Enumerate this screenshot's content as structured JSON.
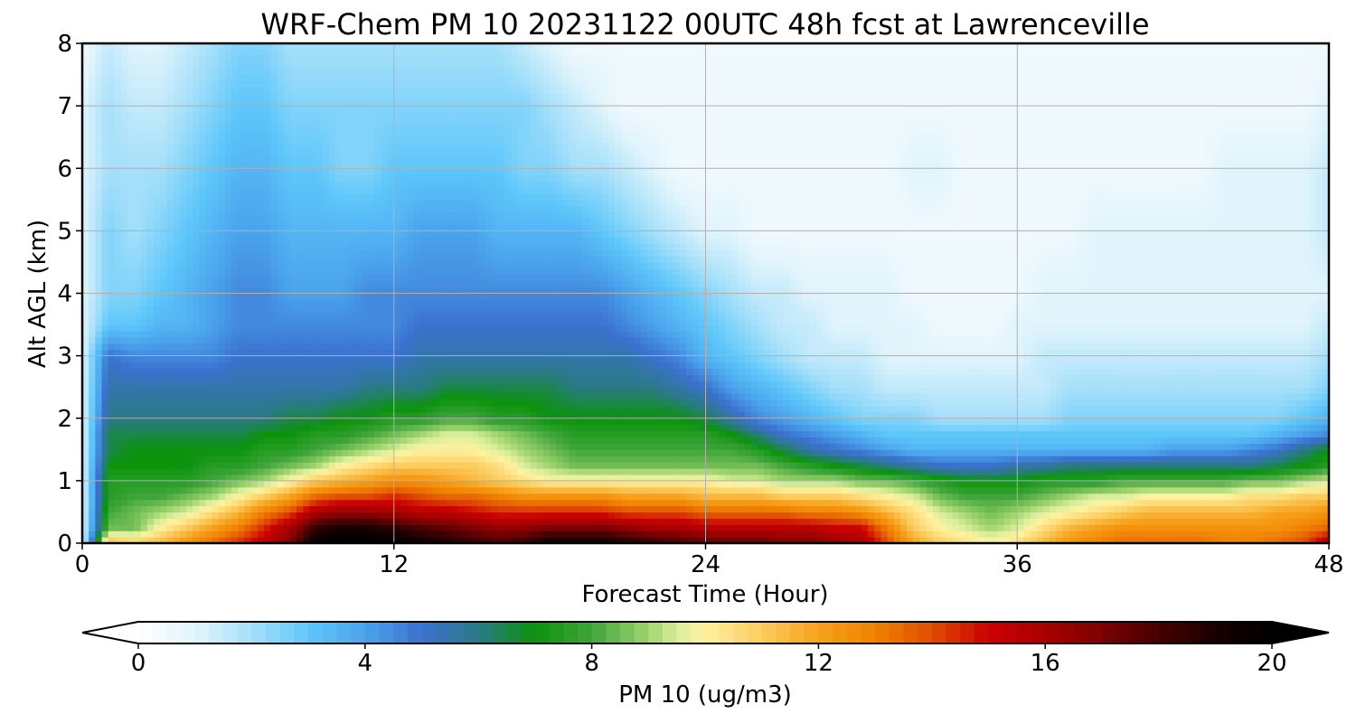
{
  "chart_data": {
    "type": "heatmap",
    "title": "WRF-Chem PM 10  20231122 00UTC 48h fcst at Lawrenceville",
    "xlabel": "Forecast Time (Hour)",
    "ylabel": "Alt AGL (km)",
    "xlim": [
      0,
      48
    ],
    "ylim": [
      0,
      8
    ],
    "x_ticks": [
      "0",
      "12",
      "24",
      "36",
      "48"
    ],
    "y_ticks": [
      "0",
      "1",
      "2",
      "3",
      "4",
      "5",
      "6",
      "7",
      "8"
    ],
    "grid": true,
    "x_hours": [
      0,
      1,
      2,
      3,
      4,
      5,
      6,
      7,
      8,
      9,
      10,
      11,
      12,
      13,
      14,
      15,
      16,
      17,
      18,
      19,
      20,
      21,
      22,
      23,
      24,
      25,
      26,
      27,
      28,
      29,
      30,
      31,
      32,
      33,
      34,
      35,
      36,
      37,
      38,
      39,
      40,
      41,
      42,
      43,
      44,
      45,
      46,
      47,
      48
    ],
    "y_km": [
      0,
      0.25,
      0.5,
      0.75,
      1,
      1.25,
      1.5,
      1.75,
      2,
      2.5,
      3,
      3.5,
      4,
      5,
      6,
      7,
      8
    ],
    "pm10_ugm3": [
      [
        1.0,
        11.5,
        11.0,
        11.5,
        12.5,
        13.5,
        14.5,
        15.5,
        17.0,
        20.0,
        20.5,
        20.5,
        20.0,
        19.5,
        19.0,
        18.5,
        18.0,
        18.5,
        19.5,
        19.5,
        19.5,
        19.0,
        18.5,
        18.0,
        17.5,
        17.5,
        17.5,
        17.0,
        17.0,
        16.5,
        16.0,
        14.0,
        12.0,
        11.0,
        10.5,
        10.0,
        10.5,
        11.5,
        12.5,
        13.0,
        13.5,
        13.5,
        13.5,
        13.5,
        13.0,
        13.0,
        13.5,
        14.0,
        16.0
      ],
      [
        1.0,
        8.5,
        8.5,
        10.0,
        11.0,
        12.0,
        13.0,
        14.5,
        16.0,
        18.5,
        19.0,
        19.0,
        18.5,
        18.0,
        17.5,
        17.0,
        16.5,
        16.5,
        17.0,
        17.0,
        17.0,
        16.5,
        16.0,
        16.0,
        15.5,
        15.5,
        15.5,
        15.5,
        15.5,
        15.0,
        15.0,
        13.0,
        11.0,
        10.0,
        9.5,
        9.0,
        9.5,
        10.5,
        11.5,
        12.0,
        12.5,
        12.5,
        12.5,
        12.5,
        12.5,
        12.5,
        12.5,
        13.0,
        13.5
      ],
      [
        1.0,
        8.0,
        8.5,
        9.0,
        9.5,
        10.5,
        11.5,
        13.0,
        14.0,
        16.0,
        16.5,
        16.5,
        16.0,
        15.5,
        15.5,
        15.0,
        14.5,
        14.5,
        14.5,
        14.5,
        14.5,
        14.0,
        14.0,
        14.0,
        13.5,
        13.5,
        13.5,
        13.5,
        13.0,
        13.0,
        12.5,
        11.5,
        10.5,
        9.5,
        9.0,
        8.5,
        9.0,
        9.5,
        10.0,
        10.5,
        11.0,
        11.5,
        11.5,
        11.5,
        11.5,
        11.5,
        12.0,
        12.0,
        12.5
      ],
      [
        1.0,
        7.5,
        8.0,
        8.0,
        8.5,
        9.0,
        10.0,
        11.0,
        12.0,
        13.5,
        14.0,
        14.0,
        14.5,
        14.0,
        13.5,
        13.5,
        13.0,
        12.5,
        12.5,
        12.5,
        12.5,
        12.0,
        12.0,
        12.0,
        11.5,
        11.5,
        11.5,
        11.0,
        11.0,
        11.0,
        10.5,
        10.0,
        9.5,
        8.5,
        8.0,
        8.0,
        8.0,
        8.5,
        9.0,
        9.5,
        9.5,
        10.0,
        10.0,
        10.0,
        10.0,
        10.5,
        10.5,
        11.0,
        11.0
      ],
      [
        1.0,
        7.5,
        7.5,
        7.5,
        7.5,
        8.0,
        8.5,
        9.0,
        10.0,
        11.0,
        11.5,
        12.0,
        12.5,
        12.5,
        12.0,
        11.5,
        11.0,
        10.5,
        10.0,
        10.0,
        10.0,
        10.0,
        10.0,
        10.0,
        10.0,
        9.5,
        9.5,
        9.0,
        9.0,
        9.0,
        8.5,
        8.5,
        8.0,
        7.5,
        7.0,
        7.0,
        7.0,
        7.5,
        7.5,
        7.5,
        8.0,
        8.0,
        8.0,
        8.0,
        8.0,
        8.5,
        8.5,
        9.0,
        9.5
      ],
      [
        1.0,
        7.0,
        7.0,
        7.0,
        7.0,
        7.5,
        7.5,
        8.0,
        8.5,
        9.0,
        10.0,
        10.5,
        11.0,
        11.0,
        11.0,
        11.0,
        10.5,
        9.5,
        9.0,
        8.5,
        8.5,
        8.5,
        8.5,
        8.5,
        8.5,
        8.5,
        8.5,
        8.0,
        7.5,
        7.0,
        6.5,
        6.0,
        5.5,
        5.0,
        5.0,
        5.0,
        5.5,
        5.5,
        6.0,
        6.0,
        6.0,
        6.0,
        6.0,
        6.0,
        6.0,
        6.0,
        6.5,
        7.0,
        7.5
      ],
      [
        1.0,
        6.5,
        7.0,
        7.0,
        7.0,
        7.0,
        7.0,
        7.5,
        7.5,
        8.0,
        8.5,
        9.0,
        9.5,
        10.0,
        10.0,
        10.0,
        9.5,
        9.0,
        8.5,
        8.0,
        8.0,
        8.0,
        8.0,
        8.0,
        8.0,
        8.0,
        7.5,
        6.5,
        5.5,
        5.0,
        4.5,
        4.0,
        3.5,
        3.5,
        3.5,
        3.5,
        3.5,
        3.5,
        3.5,
        3.5,
        3.5,
        3.5,
        4.0,
        4.0,
        4.0,
        4.5,
        5.0,
        6.0,
        7.0
      ],
      [
        1.0,
        6.5,
        6.5,
        6.5,
        6.5,
        6.5,
        6.5,
        7.0,
        7.0,
        7.5,
        7.5,
        8.0,
        8.5,
        9.0,
        9.5,
        9.5,
        9.0,
        8.5,
        8.0,
        7.5,
        7.5,
        7.5,
        7.5,
        7.5,
        7.5,
        7.0,
        6.0,
        5.0,
        4.5,
        4.0,
        3.5,
        3.0,
        3.0,
        3.0,
        3.0,
        3.0,
        3.0,
        3.0,
        3.0,
        3.0,
        3.0,
        3.0,
        3.0,
        3.0,
        3.0,
        3.0,
        3.5,
        4.0,
        4.5
      ],
      [
        1.0,
        6.0,
        6.0,
        6.0,
        6.0,
        6.0,
        6.0,
        6.0,
        6.5,
        6.5,
        7.0,
        7.0,
        7.5,
        7.5,
        8.0,
        8.0,
        7.5,
        7.5,
        7.0,
        7.0,
        7.0,
        7.0,
        7.0,
        7.0,
        6.5,
        5.5,
        4.5,
        4.0,
        3.5,
        3.0,
        2.5,
        2.5,
        2.5,
        2.0,
        2.0,
        2.0,
        2.0,
        2.0,
        2.5,
        2.5,
        2.5,
        2.5,
        2.5,
        2.5,
        2.5,
        2.5,
        2.5,
        3.0,
        3.5
      ],
      [
        1.0,
        5.5,
        5.5,
        5.5,
        5.5,
        5.5,
        5.5,
        5.5,
        5.5,
        5.5,
        5.5,
        6.0,
        6.0,
        6.0,
        6.5,
        6.5,
        6.5,
        6.5,
        6.5,
        6.0,
        6.0,
        6.0,
        6.0,
        5.5,
        5.0,
        4.0,
        3.5,
        3.0,
        2.5,
        2.0,
        2.0,
        1.5,
        1.5,
        1.5,
        1.5,
        1.5,
        1.5,
        1.5,
        2.0,
        2.0,
        2.0,
        2.0,
        2.0,
        2.0,
        2.0,
        2.0,
        2.0,
        2.0,
        2.5
      ],
      [
        1.0,
        5.0,
        4.5,
        4.5,
        4.5,
        4.5,
        5.0,
        5.0,
        5.0,
        5.0,
        5.0,
        5.0,
        5.0,
        5.5,
        5.5,
        5.5,
        5.5,
        5.5,
        5.5,
        5.5,
        5.5,
        5.5,
        5.0,
        4.5,
        3.5,
        3.0,
        2.5,
        2.0,
        1.5,
        1.5,
        1.5,
        1.0,
        1.0,
        1.0,
        1.0,
        1.0,
        1.0,
        1.5,
        1.5,
        1.5,
        1.5,
        1.5,
        1.5,
        1.5,
        1.5,
        1.5,
        1.5,
        1.5,
        2.0
      ],
      [
        1.0,
        3.0,
        3.0,
        3.5,
        3.5,
        4.0,
        4.5,
        4.5,
        4.5,
        4.5,
        4.5,
        4.5,
        4.5,
        5.0,
        5.0,
        5.0,
        5.0,
        5.0,
        5.0,
        5.0,
        5.0,
        4.5,
        4.0,
        3.5,
        3.0,
        2.5,
        2.0,
        1.5,
        1.5,
        1.0,
        1.0,
        1.0,
        1.0,
        0.5,
        0.5,
        0.5,
        1.0,
        1.0,
        1.0,
        1.0,
        1.0,
        1.0,
        1.0,
        1.0,
        1.0,
        1.0,
        1.0,
        1.0,
        1.5
      ],
      [
        1.0,
        2.5,
        2.5,
        3.0,
        3.5,
        4.0,
        4.5,
        4.5,
        4.0,
        4.0,
        4.0,
        4.5,
        4.5,
        4.5,
        4.5,
        4.5,
        4.5,
        4.5,
        4.5,
        4.5,
        4.5,
        4.0,
        3.5,
        3.0,
        2.5,
        2.0,
        1.5,
        1.5,
        1.0,
        1.0,
        1.0,
        1.0,
        0.5,
        0.5,
        0.5,
        0.5,
        0.5,
        1.0,
        1.0,
        1.0,
        1.0,
        1.0,
        1.0,
        1.0,
        1.0,
        1.0,
        1.0,
        1.0,
        1.0
      ],
      [
        1.0,
        2.5,
        2.0,
        2.5,
        3.0,
        3.5,
        4.0,
        4.0,
        3.5,
        3.5,
        3.5,
        3.5,
        3.5,
        4.0,
        4.0,
        4.0,
        3.5,
        3.5,
        3.5,
        3.5,
        3.0,
        2.5,
        2.0,
        1.5,
        1.0,
        1.0,
        0.5,
        0.5,
        0.5,
        0.5,
        0.5,
        0.5,
        0.5,
        0.5,
        0.5,
        0.5,
        0.5,
        0.5,
        0.5,
        1.0,
        1.0,
        1.0,
        1.0,
        1.0,
        1.0,
        1.0,
        1.0,
        1.0,
        1.5
      ],
      [
        1.0,
        2.0,
        2.0,
        2.0,
        2.5,
        3.0,
        3.5,
        3.5,
        3.0,
        3.0,
        2.5,
        2.5,
        3.0,
        3.0,
        3.0,
        3.0,
        3.0,
        2.5,
        2.5,
        2.0,
        2.0,
        1.5,
        1.0,
        0.5,
        0.5,
        0.5,
        0.5,
        0.5,
        0.5,
        0.5,
        0.5,
        0.5,
        1.0,
        1.0,
        0.5,
        0.5,
        0.5,
        0.5,
        0.5,
        0.5,
        0.5,
        0.5,
        0.5,
        0.5,
        1.0,
        1.0,
        1.0,
        1.0,
        1.5
      ],
      [
        1.0,
        2.0,
        1.5,
        1.5,
        2.0,
        2.5,
        3.0,
        3.0,
        2.5,
        2.5,
        2.5,
        2.5,
        2.5,
        2.5,
        2.5,
        2.5,
        2.5,
        2.5,
        2.0,
        1.5,
        1.0,
        0.5,
        0.5,
        0.5,
        0.5,
        0.5,
        0.5,
        0.5,
        0.5,
        0.5,
        0.5,
        0.5,
        0.5,
        0.5,
        0.5,
        0.5,
        0.5,
        0.5,
        0.5,
        0.5,
        0.5,
        0.5,
        0.5,
        0.5,
        0.5,
        0.5,
        0.5,
        0.5,
        1.0
      ],
      [
        0.5,
        1.5,
        1.0,
        1.0,
        1.5,
        2.0,
        2.5,
        2.5,
        2.0,
        2.0,
        2.0,
        2.0,
        2.0,
        2.0,
        2.0,
        2.0,
        2.0,
        1.5,
        1.0,
        0.5,
        0.5,
        0.5,
        0.5,
        0.5,
        0.5,
        0.5,
        0.5,
        0.5,
        0.5,
        0.5,
        0.5,
        0.5,
        0.5,
        0.5,
        0.5,
        0.5,
        0.5,
        0.5,
        0.5,
        0.5,
        0.5,
        0.5,
        0.5,
        0.5,
        0.5,
        0.5,
        0.5,
        0.5,
        0.5
      ]
    ],
    "colorbar": {
      "label": "PM 10  (ug/m3)",
      "min": 0,
      "max": 20,
      "ticks": [
        "0",
        "4",
        "8",
        "12",
        "16",
        "20"
      ],
      "extend": "both",
      "color_stops": [
        {
          "v": 0,
          "c": "#ffffff"
        },
        {
          "v": 1,
          "c": "#e1f4fc"
        },
        {
          "v": 2,
          "c": "#a6e0fa"
        },
        {
          "v": 3,
          "c": "#5ec7fa"
        },
        {
          "v": 4,
          "c": "#4aa3ec"
        },
        {
          "v": 5,
          "c": "#3b71cf"
        },
        {
          "v": 6,
          "c": "#2a7a86"
        },
        {
          "v": 7,
          "c": "#0c930c"
        },
        {
          "v": 8,
          "c": "#3fa53b"
        },
        {
          "v": 9,
          "c": "#9fd46d"
        },
        {
          "v": 9.5,
          "c": "#d9ee9c"
        },
        {
          "v": 10,
          "c": "#fff2a0"
        },
        {
          "v": 11,
          "c": "#fbcc5e"
        },
        {
          "v": 12,
          "c": "#f7a11c"
        },
        {
          "v": 13,
          "c": "#f08200"
        },
        {
          "v": 14,
          "c": "#df4d00"
        },
        {
          "v": 15,
          "c": "#cc0000"
        },
        {
          "v": 16,
          "c": "#a80000"
        },
        {
          "v": 17,
          "c": "#7c0000"
        },
        {
          "v": 18,
          "c": "#470000"
        },
        {
          "v": 19,
          "c": "#180000"
        },
        {
          "v": 20,
          "c": "#000000"
        }
      ]
    }
  }
}
